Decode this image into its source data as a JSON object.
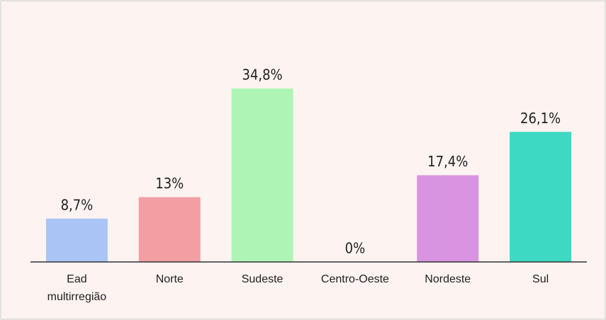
{
  "chart_data": {
    "type": "bar",
    "categories": [
      "Ead multirregião",
      "Norte",
      "Sudeste",
      "Centro-Oeste",
      "Nordeste",
      "Sul"
    ],
    "values": [
      8.7,
      13,
      34.8,
      0,
      17.4,
      26.1
    ],
    "value_labels": [
      "8,7%",
      "13%",
      "34,8%",
      "0%",
      "17,4%",
      "26,1%"
    ],
    "colors": [
      "#a9c4f5",
      "#f29ea3",
      "#aef5b5",
      "#cccccc",
      "#d894e0",
      "#3dd9c2"
    ]
  }
}
